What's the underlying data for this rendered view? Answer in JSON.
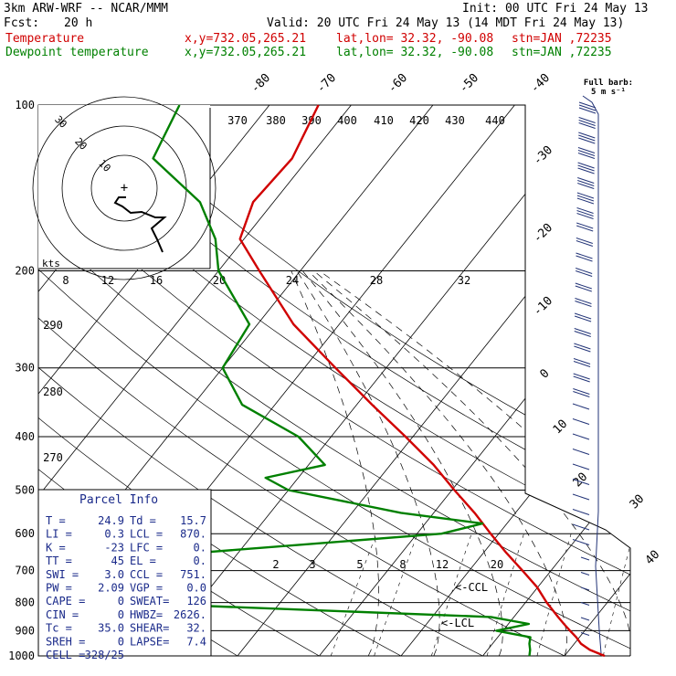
{
  "header": {
    "model": "3km ARW-WRF -- NCAR/MMM",
    "init": "Init: 00 UTC Fri 24 May 13",
    "fcst_label": "Fcst:",
    "fcst_value": "20 h",
    "valid": "Valid: 20 UTC Fri 24 May 13 (14 MDT Fri 24 May 13)",
    "temp_label": "Temperature",
    "dew_label": "Dewpoint temperature",
    "xy": "x,y=732.05,265.21",
    "latlon": "lat,lon= 32.32, -90.08",
    "stn": "stn=JAN ,72235",
    "temp_color": "#d00000",
    "dew_color": "#008000"
  },
  "chart_data": {
    "type": "line",
    "subtype": "skew-T log-P sounding",
    "y_axis": "pressure (hPa), log scale",
    "pressure_labels": [
      100,
      200,
      300,
      400,
      500,
      600,
      700,
      800,
      900,
      1000
    ],
    "ylim": [
      100,
      1000
    ],
    "isotherm_labels": [
      -80,
      -70,
      -60,
      -50,
      -40,
      -30,
      -20,
      -10,
      0,
      10,
      20,
      30,
      40
    ],
    "theta_labels": [
      370,
      380,
      390,
      400,
      410,
      420,
      430,
      440
    ],
    "mixing_ratio_upper_labels": [
      8,
      12,
      16,
      20,
      24,
      28,
      32
    ],
    "mixing_ratio_lower_labels": [
      2,
      3,
      5,
      8,
      12,
      20
    ],
    "left_labels": [
      290,
      280,
      270
    ],
    "ccl_label": "<-CCL",
    "lcl_label": "<-LCL",
    "series": [
      {
        "name": "Temperature",
        "color": "#d00000",
        "points": [
          [
            1000,
            24.9
          ],
          [
            975,
            22.5
          ],
          [
            950,
            20.8
          ],
          [
            925,
            19.6
          ],
          [
            900,
            18.2
          ],
          [
            875,
            16.8
          ],
          [
            850,
            15.4
          ],
          [
            800,
            12.6
          ],
          [
            750,
            9.9
          ],
          [
            700,
            6.5
          ],
          [
            650,
            2.8
          ],
          [
            600,
            -1.0
          ],
          [
            550,
            -5.0
          ],
          [
            500,
            -9.7
          ],
          [
            450,
            -14.7
          ],
          [
            400,
            -20.9
          ],
          [
            350,
            -28.1
          ],
          [
            300,
            -36.2
          ],
          [
            250,
            -45.6
          ],
          [
            200,
            -55.0
          ],
          [
            175,
            -60.5
          ],
          [
            150,
            -62.5
          ],
          [
            125,
            -62.0
          ],
          [
            100,
            -64.0
          ]
        ]
      },
      {
        "name": "Dewpoint temperature",
        "color": "#008000",
        "points": [
          [
            1000,
            15.7
          ],
          [
            975,
            15.2
          ],
          [
            950,
            14.5
          ],
          [
            925,
            14.0
          ],
          [
            900,
            9.2
          ],
          [
            875,
            12.5
          ],
          [
            850,
            7.2
          ],
          [
            800,
            -40.0
          ],
          [
            750,
            -48.5
          ],
          [
            700,
            -51.0
          ],
          [
            650,
            -35.0
          ],
          [
            600,
            -7.0
          ],
          [
            575,
            -3.0
          ],
          [
            550,
            -14.0
          ],
          [
            500,
            -30.0
          ],
          [
            475,
            -34.0
          ],
          [
            450,
            -28.0
          ],
          [
            400,
            -34.0
          ],
          [
            350,
            -44.0
          ],
          [
            300,
            -50.0
          ],
          [
            250,
            -51.0
          ],
          [
            200,
            -60.0
          ],
          [
            175,
            -63.5
          ],
          [
            150,
            -69.0
          ],
          [
            125,
            -79.0
          ],
          [
            100,
            -81.0
          ]
        ]
      }
    ],
    "hodograph": {
      "units_label": "kts",
      "ring_labels": [
        10,
        20,
        30
      ],
      "origin_mark": "+"
    },
    "wind_barbs": {
      "title_line1": "Full barb:",
      "title_line2": "5 m s⁻¹"
    }
  },
  "parcel_info": {
    "title": "Parcel Info",
    "rows": [
      [
        "T  =",
        "24.9",
        "Td =",
        "15.7"
      ],
      [
        "LI =",
        "0.3",
        "LCL =",
        "870."
      ],
      [
        "K  =",
        "-23",
        "LFC =",
        "0."
      ],
      [
        "TT =",
        "45",
        "EL =",
        "0."
      ],
      [
        "SWI =",
        "3.0",
        "CCL =",
        "751."
      ],
      [
        "PW =",
        "2.09",
        "VGP =",
        "0.0"
      ],
      [
        "CAPE =",
        "0",
        "SWEAT=",
        "126"
      ],
      [
        "CIN =",
        "0",
        "HWBZ=",
        "2626."
      ],
      [
        "Tc =",
        "35.0",
        "SHEAR=",
        "32."
      ],
      [
        "SREH =",
        "0",
        "LAPSE=",
        "7.4"
      ],
      [
        "CELL =",
        "328/25",
        "",
        ""
      ]
    ]
  }
}
